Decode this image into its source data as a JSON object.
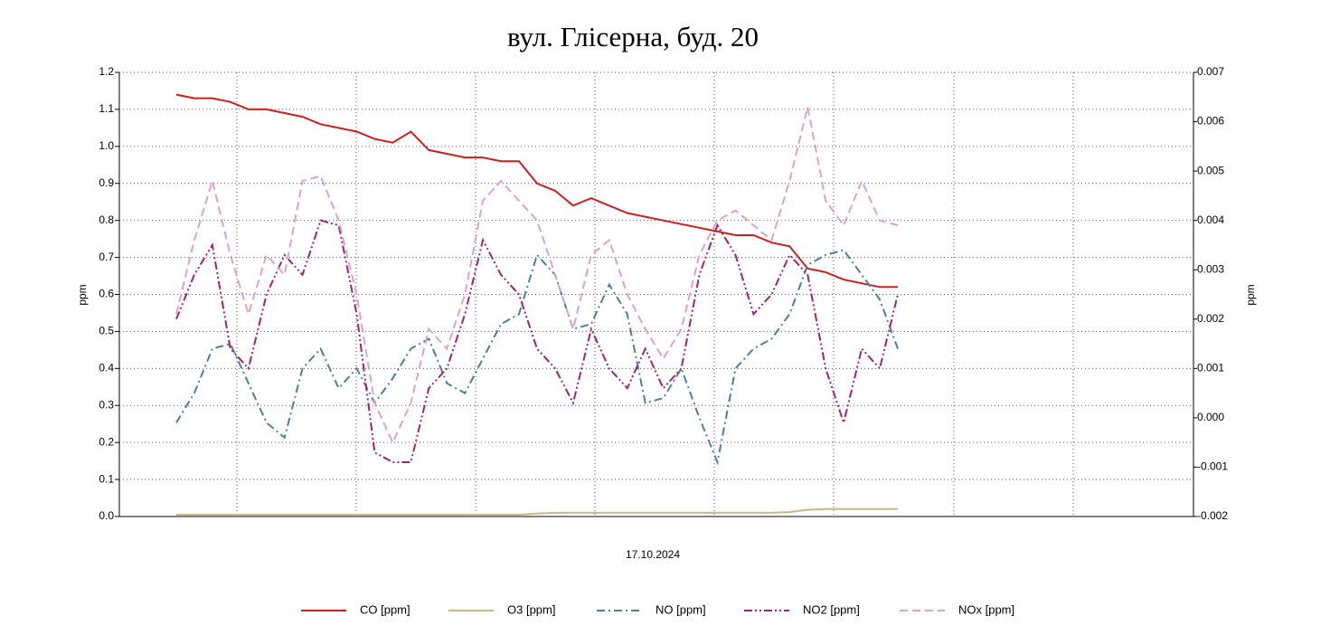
{
  "chart_data": {
    "type": "line",
    "title": "вул. Глісерна, буд. 20",
    "x_label": "17.10.2024",
    "y_label": "ppm",
    "y2_label": "ppm",
    "ylim": [
      0,
      1.2
    ],
    "yticks": [
      {
        "value": 0,
        "label": "0.0"
      },
      0.1,
      0.2,
      0.3,
      0.4,
      0.5,
      0.6,
      0.7,
      0.8,
      0.9,
      {
        "value": 1,
        "label": "1.0"
      },
      1.1,
      1.2
    ],
    "y2lim": [
      -0.002,
      0.007
    ],
    "y2ticks": [
      -0.002,
      -0.001,
      {
        "value": 0,
        "label": "0.000"
      },
      0.001,
      0.002,
      0.003,
      0.004,
      0.005,
      0.006,
      0.007
    ],
    "grid": true,
    "legend": "bottom",
    "series": [
      {
        "name": "CO [ppm]",
        "color": "#cc1f1f",
        "dash": "solid",
        "axis": "y",
        "values": [
          1.14,
          1.13,
          1.13,
          1.12,
          1.1,
          1.1,
          1.09,
          1.08,
          1.06,
          1.05,
          1.04,
          1.02,
          1.01,
          1.04,
          0.99,
          0.98,
          0.97,
          0.97,
          0.96,
          0.96,
          0.9,
          0.88,
          0.84,
          0.86,
          0.84,
          0.82,
          0.81,
          0.8,
          0.79,
          0.78,
          0.77,
          0.76,
          0.76,
          0.74,
          0.73,
          0.67,
          0.66,
          0.64,
          0.63,
          0.62,
          0.62
        ]
      },
      {
        "name": "O3 [ppm]",
        "color": "#c8b68a",
        "dash": "solid",
        "axis": "y",
        "values": [
          0.005,
          0.005,
          0.005,
          0.005,
          0.005,
          0.005,
          0.005,
          0.005,
          0.005,
          0.005,
          0.005,
          0.005,
          0.005,
          0.005,
          0.005,
          0.005,
          0.005,
          0.005,
          0.005,
          0.005,
          0.008,
          0.01,
          0.01,
          0.01,
          0.01,
          0.01,
          0.01,
          0.01,
          0.01,
          0.01,
          0.01,
          0.01,
          0.01,
          0.01,
          0.012,
          0.018,
          0.02,
          0.02,
          0.02,
          0.02,
          0.02
        ]
      },
      {
        "name": "NO [ppm]",
        "color": "#4a7f9a",
        "dash": "dashdot",
        "axis": "y2",
        "values": [
          -0.0001,
          0.0005,
          0.0014,
          0.0015,
          0.0007,
          -0.0001,
          -0.0004,
          0.001,
          0.0014,
          0.0006,
          0.001,
          0.0003,
          0.0008,
          0.0014,
          0.0016,
          0.0007,
          0.0005,
          0.0012,
          0.0019,
          0.0021,
          0.0033,
          0.0029,
          0.0018,
          0.0019,
          0.0027,
          0.0021,
          0.0003,
          0.0004,
          0.001,
          0.0,
          -0.0009,
          0.001,
          0.0014,
          0.0016,
          0.0021,
          0.0031,
          0.0033,
          0.0034,
          0.0029,
          0.0024,
          0.0014
        ]
      },
      {
        "name": "NO2 [ppm]",
        "color": "#a0207a",
        "dash": "dashdotdot",
        "axis": "y2",
        "values": [
          0.002,
          0.0029,
          0.0035,
          0.0014,
          0.001,
          0.0025,
          0.0033,
          0.0029,
          0.004,
          0.0039,
          0.0021,
          -0.0007,
          -0.0009,
          -0.0009,
          0.0006,
          0.001,
          0.0021,
          0.0036,
          0.0029,
          0.0025,
          0.0014,
          0.001,
          0.0003,
          0.0018,
          0.001,
          0.0006,
          0.0014,
          0.0006,
          0.001,
          0.0029,
          0.0039,
          0.0033,
          0.0021,
          0.0025,
          0.0033,
          0.0029,
          0.001,
          -0.0001,
          0.0014,
          0.001,
          0.0025
        ]
      },
      {
        "name": "NOx [ppm]",
        "color": "#dda0d0",
        "dash": "dash",
        "axis": "y2",
        "values": [
          0.0021,
          0.0036,
          0.0048,
          0.0033,
          0.0021,
          0.0033,
          0.0029,
          0.0048,
          0.0049,
          0.004,
          0.0025,
          0.0003,
          -0.0005,
          0.0003,
          0.0018,
          0.0014,
          0.0025,
          0.0044,
          0.0048,
          0.0044,
          0.004,
          0.0029,
          0.0018,
          0.0033,
          0.0036,
          0.0025,
          0.0018,
          0.0012,
          0.0018,
          0.0033,
          0.004,
          0.0042,
          0.0039,
          0.0036,
          0.0048,
          0.0063,
          0.0044,
          0.0039,
          0.0048,
          0.004,
          0.0039
        ]
      }
    ]
  }
}
